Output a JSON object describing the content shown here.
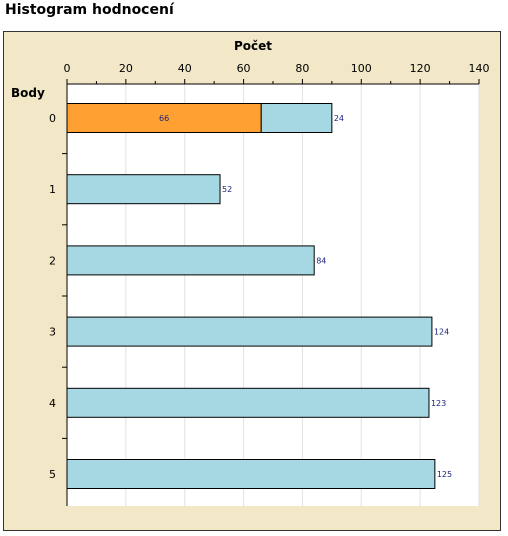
{
  "page": {
    "title": "Histogram hodnocení"
  },
  "chart_data": {
    "type": "bar",
    "orientation": "horizontal",
    "stacked": true,
    "title": "",
    "xlabel": "Počet",
    "ylabel": "Body",
    "xlim": [
      0,
      140
    ],
    "x_ticks": [
      0,
      20,
      40,
      60,
      80,
      100,
      120,
      140
    ],
    "categories": [
      "0",
      "1",
      "2",
      "3",
      "4",
      "5"
    ],
    "series": [
      {
        "values": [
          66,
          0,
          0,
          0,
          0,
          0
        ],
        "color": "#ffa033"
      },
      {
        "values": [
          24,
          52,
          84,
          124,
          123,
          125
        ],
        "color": "#a6d8e4"
      }
    ],
    "grid": true,
    "legend": "none"
  }
}
